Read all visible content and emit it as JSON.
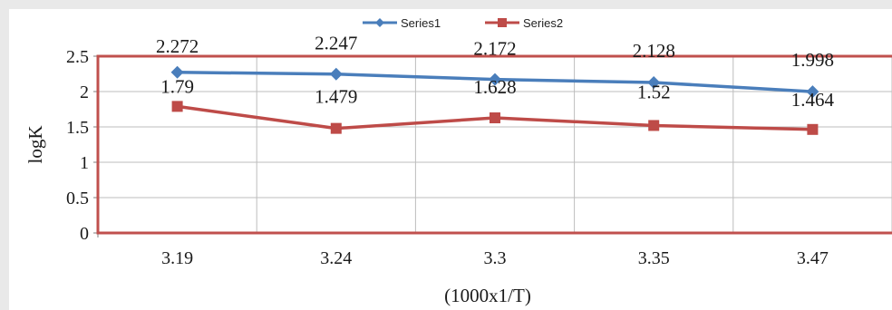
{
  "chart_data": {
    "type": "line",
    "xlabel": "(1000x1/T)",
    "ylabel": "logK",
    "categories": [
      "3.19",
      "3.24",
      "3.3",
      "3.35",
      "3.47"
    ],
    "ylim": [
      0,
      2.5
    ],
    "yticks": [
      "0",
      "0.5",
      "1",
      "1.5",
      "2",
      "2.5"
    ],
    "grid": true,
    "legend_position": "top",
    "series": [
      {
        "name": "Series1",
        "values": [
          2.272,
          2.247,
          2.172,
          2.128,
          1.998
        ],
        "labels": [
          "2.272",
          "2.247",
          "2.172",
          "2.128",
          "1.998"
        ],
        "color": "#4a7ebb",
        "marker": "diamond"
      },
      {
        "name": "Series2",
        "values": [
          1.79,
          1.479,
          1.628,
          1.52,
          1.464
        ],
        "labels": [
          "1.79",
          "1.479",
          "1.628",
          "1.52",
          "1.464"
        ],
        "color": "#be4b48",
        "marker": "square"
      }
    ],
    "plot_border_color": "#c0504d"
  }
}
